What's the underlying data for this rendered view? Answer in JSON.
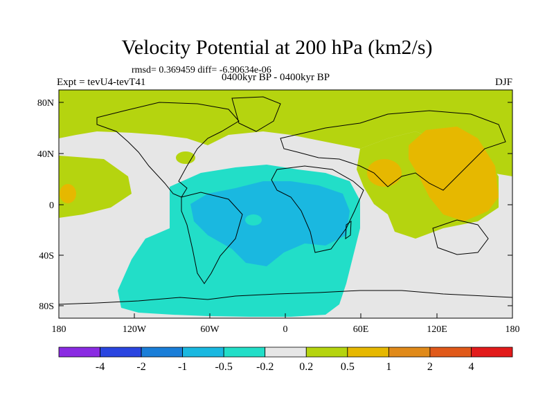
{
  "title": "Velocity Potential at 200 hPa (km2/s)",
  "stats": "rmsd= 0.369459 diff= -6.90634e-06",
  "left_label": "Expt = tevU4-tevT41",
  "center_label": "0400kyr BP - 0400kyr BP",
  "right_label": "DJF",
  "map": {
    "y_ticks": [
      "80N",
      "40N",
      "0",
      "40S",
      "80S"
    ],
    "x_ticks": [
      "180",
      "120W",
      "60W",
      "0",
      "60E",
      "120E",
      "180"
    ]
  },
  "colorbar": {
    "labels": [
      "-4",
      "-2",
      "-1",
      "-0.5",
      "-0.2",
      "0.2",
      "0.5",
      "1",
      "2",
      "4"
    ],
    "colors": [
      "#8a2be2",
      "#2a45e0",
      "#1a7ed8",
      "#1ab8e0",
      "#22dec8",
      "#e6e6e6",
      "#b5d40f",
      "#e6b800",
      "#e08a1a",
      "#e0591a",
      "#e21b1b"
    ]
  }
}
